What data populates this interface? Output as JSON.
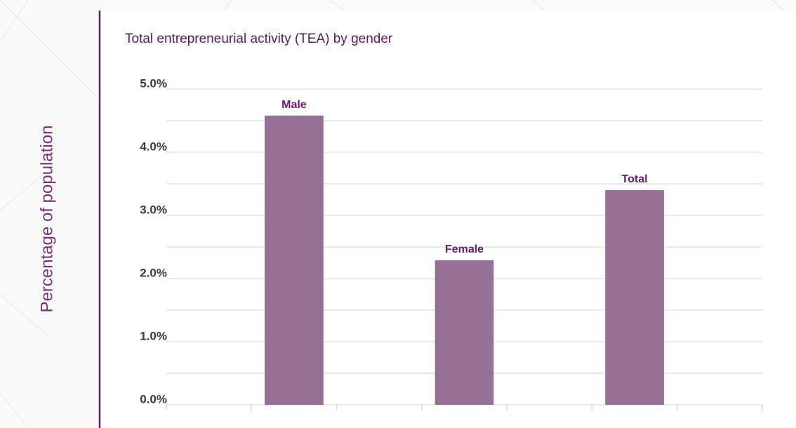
{
  "chart_data": {
    "type": "bar",
    "title": "Total entrepreneurial activity (TEA) by gender",
    "y_label": "Percentage of population",
    "categories": [
      null,
      "Male",
      null,
      "Female",
      null,
      "Total",
      null
    ],
    "values": [
      null,
      4.58,
      null,
      2.29,
      null,
      3.4,
      null
    ],
    "color": "#967096",
    "ylim": [
      0,
      5
    ],
    "yticks": [
      {
        "value": 0,
        "label": "0.0%"
      },
      {
        "value": 1,
        "label": "1.0%"
      },
      {
        "value": 2,
        "label": "2.0%"
      },
      {
        "value": 3,
        "label": "3.0%"
      },
      {
        "value": 4,
        "label": "4.0%"
      },
      {
        "value": 5,
        "label": "5.0%"
      }
    ],
    "minor_yticks": [
      0.5,
      1.5,
      2.5,
      3.5,
      4.5
    ],
    "grid": true
  }
}
